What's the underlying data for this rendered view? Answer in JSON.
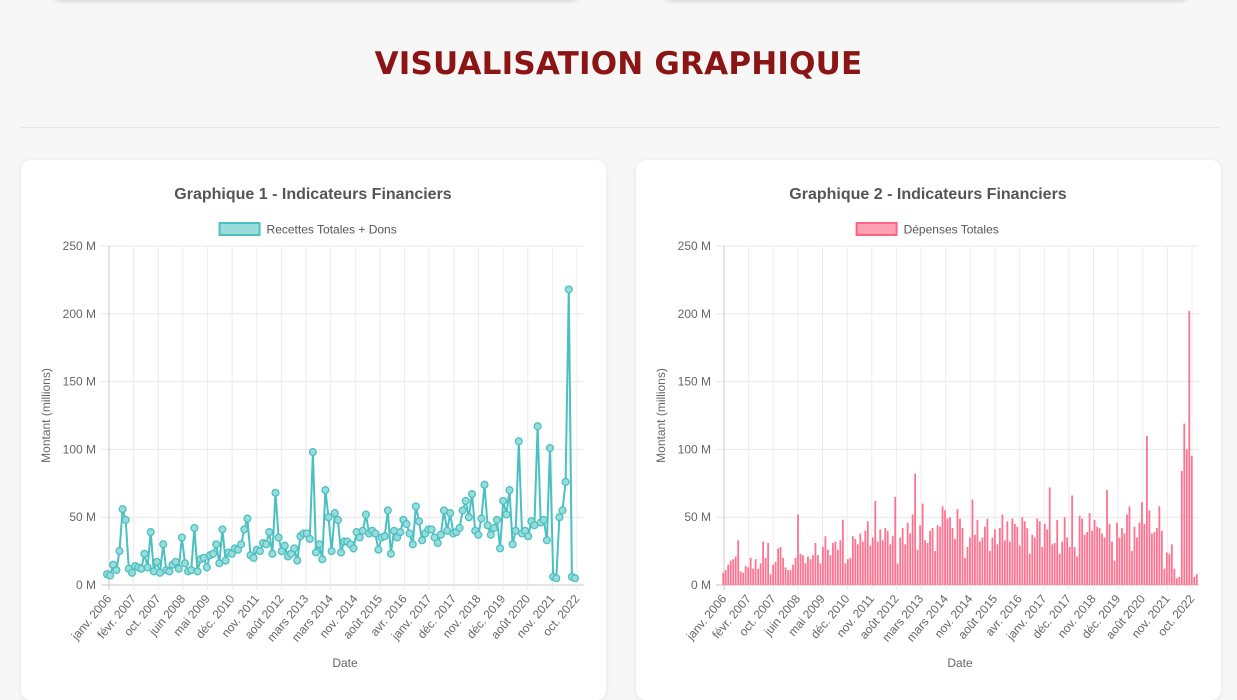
{
  "page": {
    "section_title": "VISUALISATION GRAPHIQUE"
  },
  "colors": {
    "title": "#8b1414",
    "recettes_line": "#4bc0c0",
    "recettes_fill": "#9adcdc",
    "depenses_bar": "#ff6384",
    "depenses_fill": "#ffa1b5"
  },
  "chart_data": [
    {
      "type": "line",
      "title": "Graphique 1 - Indicateurs Financiers",
      "xlabel": "Date",
      "ylabel": "Montant (millions)",
      "ylim": [
        0,
        250
      ],
      "y_ticks": [
        "0 M",
        "50 M",
        "100 M",
        "150 M",
        "200 M",
        "250 M"
      ],
      "x_ticks": [
        "janv. 2006",
        "févr. 2007",
        "oct. 2007",
        "juin 2008",
        "mai 2009",
        "déc. 2010",
        "nov. 2011",
        "août 2012",
        "mars 2013",
        "mars 2014",
        "nov. 2014",
        "août 2015",
        "avr. 2016",
        "janv. 2017",
        "déc. 2017",
        "nov. 2018",
        "déc. 2019",
        "août 2020",
        "nov. 2021",
        "oct. 2022"
      ],
      "legend_position": "top",
      "grid": true,
      "series": [
        {
          "name": "Recettes Totales + Dons",
          "values": [
            8,
            7,
            15,
            11,
            25,
            56,
            48,
            12,
            9,
            14,
            13,
            12,
            23,
            13,
            39,
            10,
            17,
            9,
            30,
            11,
            10,
            15,
            17,
            12,
            35,
            16,
            10,
            11,
            42,
            10,
            19,
            20,
            13,
            22,
            23,
            30,
            16,
            41,
            18,
            24,
            23,
            27,
            26,
            30,
            41,
            49,
            22,
            20,
            26,
            25,
            31,
            30,
            39,
            23,
            68,
            35,
            25,
            29,
            21,
            23,
            27,
            18,
            36,
            38,
            38,
            34,
            98,
            24,
            30,
            19,
            70,
            50,
            25,
            53,
            48,
            24,
            32,
            32,
            30,
            27,
            39,
            35,
            40,
            52,
            38,
            40,
            38,
            26,
            35,
            36,
            55,
            23,
            40,
            35,
            39,
            48,
            45,
            38,
            30,
            58,
            47,
            33,
            38,
            41,
            41,
            35,
            31,
            37,
            55,
            40,
            53,
            38,
            39,
            42,
            55,
            62,
            50,
            67,
            40,
            37,
            49,
            74,
            44,
            37,
            42,
            48,
            27,
            62,
            52,
            70,
            30,
            40,
            106,
            38,
            40,
            36,
            47,
            44,
            117,
            46,
            48,
            33,
            101,
            6,
            5,
            50,
            55,
            76,
            218,
            6,
            5
          ]
        }
      ]
    },
    {
      "type": "bar",
      "title": "Graphique 2 - Indicateurs Financiers",
      "xlabel": "Date",
      "ylabel": "Montant (millions)",
      "ylim": [
        0,
        250
      ],
      "y_ticks": [
        "0 M",
        "50 M",
        "100 M",
        "150 M",
        "200 M",
        "250 M"
      ],
      "x_ticks": [
        "janv. 2006",
        "févr. 2007",
        "oct. 2007",
        "juin 2008",
        "mai 2009",
        "déc. 2010",
        "nov. 2011",
        "août 2012",
        "mars 2013",
        "mars 2014",
        "nov. 2014",
        "août 2015",
        "avr. 2016",
        "janv. 2017",
        "déc. 2017",
        "nov. 2018",
        "déc. 2019",
        "août 2020",
        "nov. 2021",
        "oct. 2022"
      ],
      "legend_position": "top",
      "grid": true,
      "series": [
        {
          "name": "Dépenses Totales",
          "values": [
            9,
            11,
            15,
            18,
            19,
            21,
            33,
            10,
            9,
            14,
            13,
            20,
            12,
            19,
            12,
            16,
            32,
            20,
            31,
            8,
            15,
            17,
            27,
            28,
            20,
            13,
            11,
            11,
            15,
            20,
            52,
            23,
            22,
            16,
            21,
            19,
            22,
            31,
            22,
            16,
            28,
            36,
            26,
            22,
            31,
            32,
            26,
            33,
            48,
            16,
            19,
            20,
            36,
            34,
            30,
            38,
            32,
            40,
            47,
            29,
            35,
            62,
            32,
            41,
            33,
            42,
            40,
            30,
            36,
            65,
            16,
            35,
            42,
            30,
            46,
            38,
            52,
            82,
            26,
            44,
            60,
            33,
            31,
            40,
            42,
            25,
            44,
            43,
            58,
            55,
            49,
            50,
            42,
            34,
            56,
            49,
            42,
            20,
            28,
            35,
            63,
            37,
            48,
            32,
            35,
            43,
            49,
            25,
            35,
            41,
            30,
            42,
            52,
            33,
            47,
            32,
            49,
            45,
            43,
            29,
            50,
            47,
            42,
            23,
            37,
            35,
            49,
            47,
            28,
            45,
            41,
            72,
            30,
            31,
            48,
            23,
            32,
            50,
            35,
            28,
            66,
            28,
            21,
            51,
            49,
            37,
            39,
            53,
            40,
            48,
            43,
            42,
            38,
            35,
            70,
            45,
            32,
            18,
            46,
            35,
            42,
            38,
            52,
            58,
            25,
            43,
            35,
            46,
            61,
            45,
            110,
            55,
            38,
            39,
            42,
            58,
            40,
            12,
            24,
            23,
            30,
            12,
            5,
            6,
            84,
            119,
            100,
            202,
            95,
            6,
            8
          ]
        }
      ]
    }
  ]
}
